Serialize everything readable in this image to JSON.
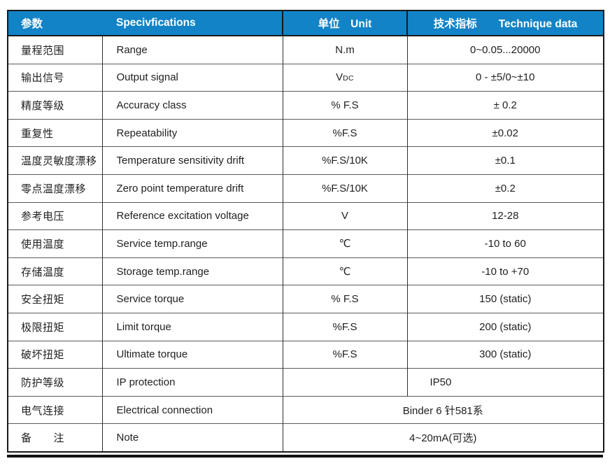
{
  "table": {
    "header": {
      "param": "参数",
      "spec": "Specivfications",
      "unit": "单位　Unit",
      "tech": "技术指标　　Technique data"
    },
    "rows": [
      {
        "param": "量程范围",
        "spec": "Range",
        "unit": "N.m",
        "value": "0~0.05...20000"
      },
      {
        "param": "输出信号",
        "spec": "Output signal",
        "unit": "V",
        "unit_sub": "DC",
        "value": "0 - ±5/0~±10"
      },
      {
        "param": "精度等级",
        "spec": "Accuracy class",
        "unit": "% F.S",
        "value": "± 0.2"
      },
      {
        "param": "重复性",
        "spec": "Repeatability",
        "unit": "%F.S",
        "value": "±0.02"
      },
      {
        "param": "温度灵敏度漂移",
        "spec": "Temperature sensitivity drift",
        "unit": "%F.S/10K",
        "value": "±0.1"
      },
      {
        "param": "零点温度漂移",
        "spec": "Zero point temperature drift",
        "unit": "%F.S/10K",
        "value": "±0.2"
      },
      {
        "param": "参考电压",
        "spec": "Reference excitation voltage",
        "unit": "V",
        "value": "12-28"
      },
      {
        "param": "使用温度",
        "spec": "Service temp.range",
        "unit": "℃",
        "value": "-10 to 60"
      },
      {
        "param": "存储温度",
        "spec": "Storage temp.range",
        "unit": "℃",
        "value": "-10 to +70"
      },
      {
        "param": "安全扭矩",
        "spec": "Service torque",
        "unit": "% F.S",
        "value": "150 (static)"
      },
      {
        "param": "极限扭矩",
        "spec": "Limit torque",
        "unit": "%F.S",
        "value": "200 (static)"
      },
      {
        "param": "破坏扭矩",
        "spec": "Ultimate torque",
        "unit": "%F.S",
        "value": "300 (static)"
      },
      {
        "param": "防护等级",
        "spec": "IP protection",
        "unit": "",
        "value": "IP50"
      },
      {
        "param": "电气连接",
        "spec": "Electrical connection",
        "value_span": "Binder 6 针581系"
      },
      {
        "param": "备　　注",
        "spec": "Note",
        "value_span": "4~20mA(可选)"
      }
    ],
    "colors": {
      "header_bg": "#1183C6",
      "header_text": "#FFFFFF",
      "body_text": "#1F1F1F",
      "grid_line": "#5A5A5A",
      "outer_border": "#1A1A1A"
    }
  }
}
